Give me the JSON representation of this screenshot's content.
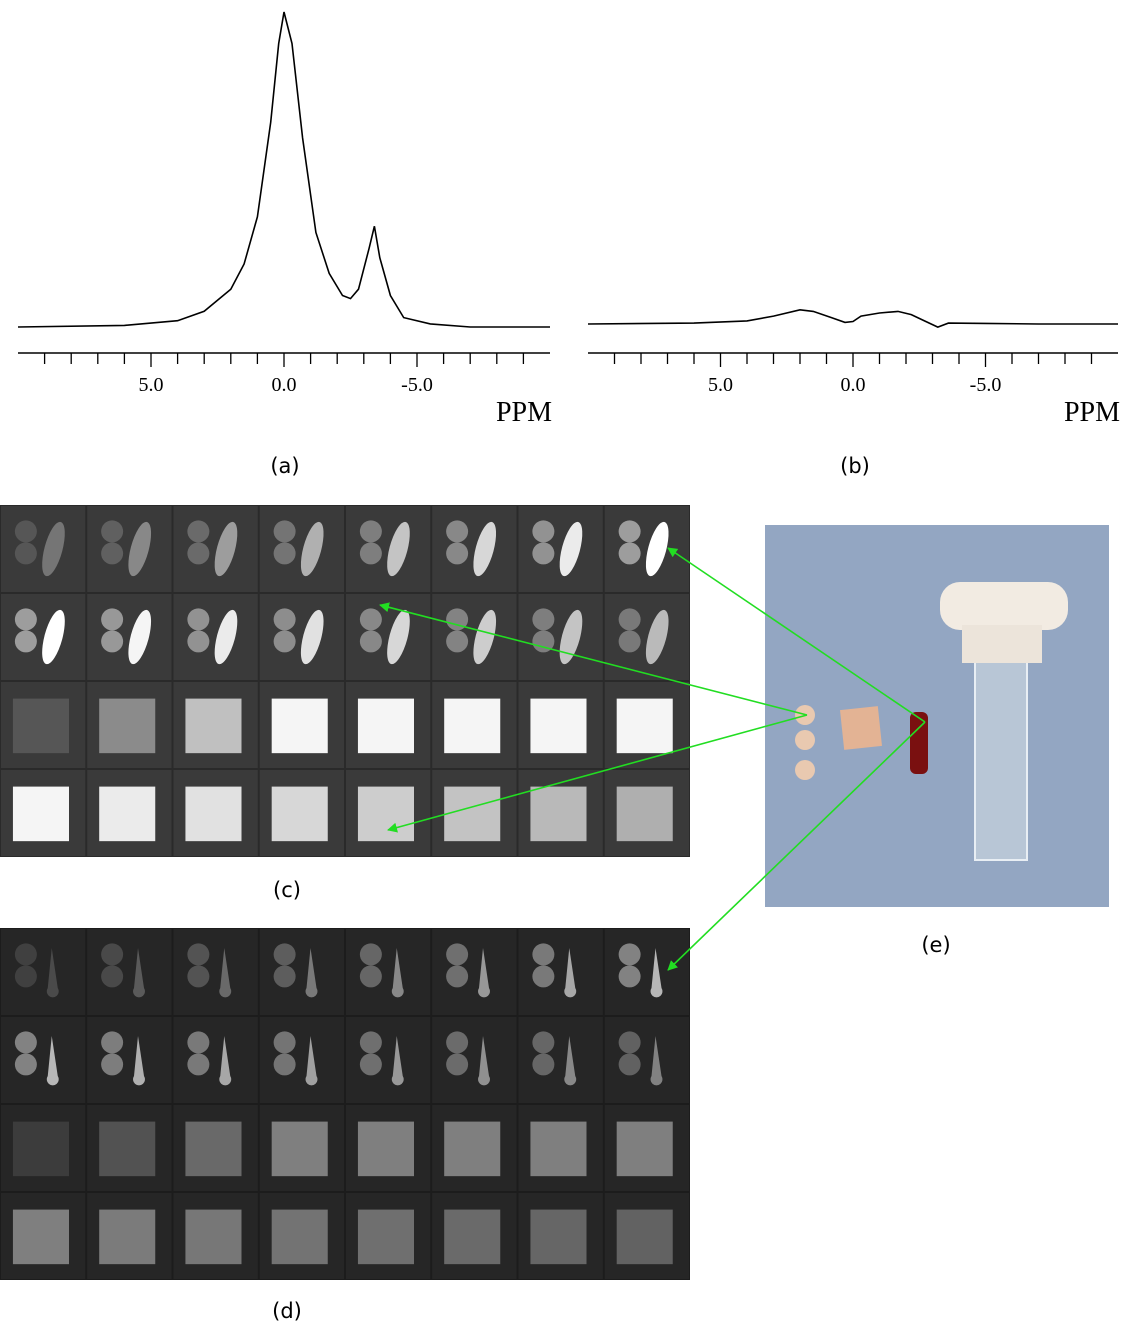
{
  "chart_data": [
    {
      "type": "line",
      "caption": "(a)",
      "x_label": "PPM",
      "x": [
        10,
        6,
        4,
        3,
        2,
        1.5,
        1,
        0.5,
        0.2,
        0,
        -0.3,
        -0.7,
        -1.2,
        -1.7,
        -2.2,
        -2.5,
        -2.8,
        -3.2,
        -3.4,
        -3.6,
        -4,
        -4.5,
        -5.5,
        -7,
        -10
      ],
      "values": [
        0,
        0.5,
        2,
        5,
        12,
        20,
        35,
        65,
        90,
        100,
        90,
        60,
        30,
        17,
        10,
        9,
        12,
        25,
        32,
        22,
        10,
        3,
        1,
        0,
        0
      ],
      "color": "#000000",
      "xlim": [
        10,
        -10
      ],
      "ylim": [
        0,
        100
      ],
      "xticks": [
        {
          "value": 5,
          "label": "5.0"
        },
        {
          "value": 0,
          "label": "0.0"
        },
        {
          "value": -5,
          "label": "-5.0"
        }
      ],
      "xminorticks": [
        9,
        8,
        7,
        6,
        4,
        3,
        2,
        1,
        -1,
        -2,
        -3,
        -4,
        -6,
        -7,
        -8,
        -9
      ]
    },
    {
      "type": "line",
      "caption": "(b)",
      "x_label": "PPM",
      "x": [
        10,
        6,
        4,
        3,
        2,
        1.5,
        0.8,
        0.3,
        0,
        -0.3,
        -1,
        -1.7,
        -2.2,
        -2.7,
        -3.2,
        -3.6,
        -5,
        -7,
        -10
      ],
      "values": [
        0,
        0.3,
        1,
        2.5,
        4.5,
        4,
        2,
        0.5,
        0.8,
        2.5,
        3.5,
        4,
        3,
        1,
        -1,
        0.3,
        0.2,
        0,
        0
      ],
      "color": "#000000",
      "xlim": [
        10,
        -10
      ],
      "ylim": [
        0,
        100
      ],
      "xticks": [
        {
          "value": 5,
          "label": "5.0"
        },
        {
          "value": 0,
          "label": "0.0"
        },
        {
          "value": -5,
          "label": "-5.0"
        }
      ],
      "xminorticks": [
        9,
        8,
        7,
        6,
        4,
        3,
        2,
        1,
        -1,
        -2,
        -3,
        -4,
        -6,
        -7,
        -8,
        -9
      ]
    }
  ],
  "images": [
    {
      "caption": "(c)"
    },
    {
      "caption": "(d)"
    },
    {
      "caption": "(e)"
    }
  ]
}
